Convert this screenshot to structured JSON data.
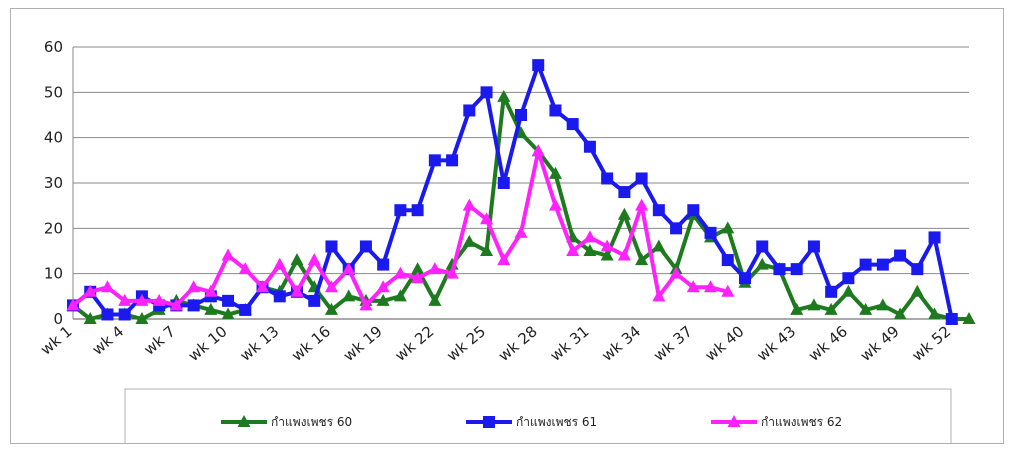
{
  "chart_data": {
    "type": "line",
    "title": "",
    "xlabel": "",
    "ylabel": "",
    "ylim": [
      0,
      60
    ],
    "yticks": [
      0,
      10,
      20,
      30,
      40,
      50,
      60
    ],
    "x": [
      "wk 1",
      "wk 2",
      "wk 3",
      "wk 4",
      "wk 5",
      "wk 6",
      "wk 7",
      "wk 8",
      "wk 9",
      "wk 10",
      "wk 11",
      "wk 12",
      "wk 13",
      "wk 14",
      "wk 15",
      "wk 16",
      "wk 17",
      "wk 18",
      "wk 19",
      "wk 20",
      "wk 21",
      "wk 22",
      "wk 23",
      "wk 24",
      "wk 25",
      "wk 26",
      "wk 27",
      "wk 28",
      "wk 29",
      "wk 30",
      "wk 31",
      "wk 32",
      "wk 33",
      "wk 34",
      "wk 35",
      "wk 36",
      "wk 37",
      "wk 38",
      "wk 39",
      "wk 40",
      "wk 41",
      "wk 42",
      "wk 43",
      "wk 44",
      "wk 45",
      "wk 46",
      "wk 47",
      "wk 48",
      "wk 49",
      "wk 50",
      "wk 51",
      "wk 52",
      "wk 53"
    ],
    "x_tick_labels": [
      "wk 1",
      "wk 4",
      "wk 7",
      "wk 10",
      "wk 13",
      "wk 16",
      "wk 19",
      "wk 22",
      "wk 25",
      "wk 28",
      "wk 31",
      "wk 34",
      "wk 37",
      "wk 40",
      "wk 43",
      "wk 46",
      "wk 49",
      "wk 52"
    ],
    "grid": true,
    "legend": "bottom",
    "series": [
      {
        "name": "กำแพงเพชร 60",
        "color": "#1e7a1e",
        "marker": "triangle",
        "values": [
          3,
          0,
          1,
          1,
          0,
          2,
          4,
          3,
          2,
          1,
          2,
          7,
          6,
          13,
          7,
          2,
          5,
          4,
          4,
          5,
          11,
          4,
          12,
          17,
          15,
          49,
          41,
          37,
          32,
          18,
          15,
          14,
          23,
          13,
          16,
          11,
          23,
          18,
          20,
          8,
          12,
          11,
          2,
          3,
          2,
          6,
          2,
          3,
          1,
          6,
          1,
          0,
          0
        ]
      },
      {
        "name": "กำแพงเพชร 61",
        "color": "#1a1aee",
        "marker": "square",
        "values": [
          3,
          6,
          1,
          1,
          5,
          3,
          3,
          3,
          5,
          4,
          2,
          7,
          5,
          6,
          4,
          16,
          11,
          16,
          12,
          24,
          24,
          35,
          35,
          46,
          50,
          30,
          45,
          56,
          46,
          43,
          38,
          31,
          28,
          31,
          24,
          20,
          24,
          19,
          13,
          9,
          16,
          11,
          11,
          16,
          6,
          9,
          12,
          12,
          14,
          11,
          18,
          0,
          null
        ]
      },
      {
        "name": "กำแพงเพชร 62",
        "color": "#ff22ff",
        "marker": "triangle",
        "values": [
          3,
          6,
          7,
          4,
          4,
          4,
          3,
          7,
          6,
          14,
          11,
          7,
          12,
          6,
          13,
          7,
          11,
          3,
          7,
          10,
          9,
          11,
          10,
          25,
          22,
          13,
          19,
          37,
          25,
          15,
          18,
          16,
          14,
          25,
          5,
          10,
          7,
          7,
          6,
          null,
          null,
          null,
          null,
          null,
          null,
          null,
          null,
          null,
          null,
          null,
          null,
          null,
          null
        ]
      }
    ]
  }
}
